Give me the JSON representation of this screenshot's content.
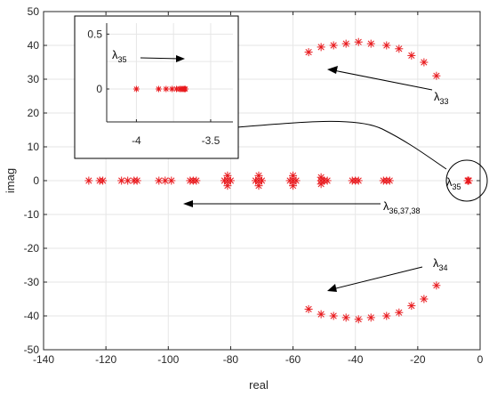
{
  "chart_data": {
    "type": "scatter",
    "xlabel": "real",
    "ylabel": "imag",
    "xlim": [
      -140,
      0
    ],
    "ylim": [
      -50,
      50
    ],
    "xticks": [
      -140,
      -120,
      -100,
      -80,
      -60,
      -40,
      -20,
      0
    ],
    "yticks": [
      -50,
      -40,
      -30,
      -20,
      -10,
      0,
      10,
      20,
      30,
      40,
      50
    ],
    "grid": true,
    "marker": "asterisk",
    "marker_color": "#e8191d",
    "series": [
      {
        "x": [
          -14,
          -18,
          -22,
          -26,
          -30,
          -35,
          -39,
          -43,
          -47,
          -51,
          -55
        ],
        "y": [
          31,
          35,
          37,
          39,
          40,
          40.5,
          41,
          40.5,
          40,
          39.5,
          38
        ]
      },
      {
        "x": [
          -14,
          -18,
          -22,
          -26,
          -30,
          -35,
          -39,
          -43,
          -47,
          -51,
          -55
        ],
        "y": [
          -31,
          -35,
          -37,
          -39,
          -40,
          -40.5,
          -41,
          -40.5,
          -40,
          -39.5,
          -38
        ]
      },
      {
        "x": [
          -4,
          -3.8,
          -3.75,
          -3.72,
          -3.7,
          -3.68,
          -3.67
        ],
        "y": [
          0,
          0,
          0,
          0,
          0,
          0,
          0
        ]
      },
      {
        "x": [
          -125.5,
          -122,
          -121,
          -115,
          -113,
          -111,
          -110,
          -103,
          -101,
          -99,
          -93,
          -92,
          -91,
          -82,
          -81,
          -80,
          -72,
          -71,
          -70,
          -61,
          -60,
          -59,
          -51,
          -50,
          -49,
          -41,
          -40,
          -39,
          -31,
          -30,
          -29
        ],
        "y": [
          0,
          0,
          0,
          0,
          0,
          0,
          0,
          0,
          0,
          0,
          0,
          0,
          0,
          0,
          0,
          0,
          0,
          0,
          0,
          0,
          0,
          0,
          0,
          0,
          0,
          0,
          0,
          0,
          0,
          0,
          0
        ]
      },
      {
        "x": [
          -81,
          -81,
          -71,
          -71,
          -60,
          -60,
          -51,
          -51
        ],
        "y": [
          1.5,
          -1.5,
          1.5,
          -1.5,
          1.5,
          -1.5,
          1,
          -1
        ]
      }
    ],
    "annotations": [
      {
        "main": "λ",
        "sub": "33"
      },
      {
        "main": "λ",
        "sub": "34"
      },
      {
        "main": "λ",
        "sub": "35"
      },
      {
        "main": "λ",
        "sub": "36,37,38"
      }
    ],
    "inset": {
      "xlim": [
        -4.2,
        -3.35
      ],
      "ylim": [
        -0.3,
        0.6
      ],
      "xticks": [
        -4,
        -3.5
      ],
      "xticklabels": [
        "-4",
        "-3.5"
      ],
      "yticks": [
        0,
        0.5
      ],
      "yticklabels": [
        "0",
        "0.5"
      ],
      "series": [
        {
          "x": [
            -4.0,
            -3.85,
            -3.8,
            -3.76,
            -3.73,
            -3.71,
            -3.7,
            -3.69,
            -3.68,
            -3.675,
            -3.67
          ],
          "y": [
            0,
            0,
            0,
            0,
            0,
            0,
            0,
            0,
            0,
            0,
            0
          ]
        }
      ],
      "annotation": {
        "main": "λ",
        "sub": "35"
      }
    }
  }
}
